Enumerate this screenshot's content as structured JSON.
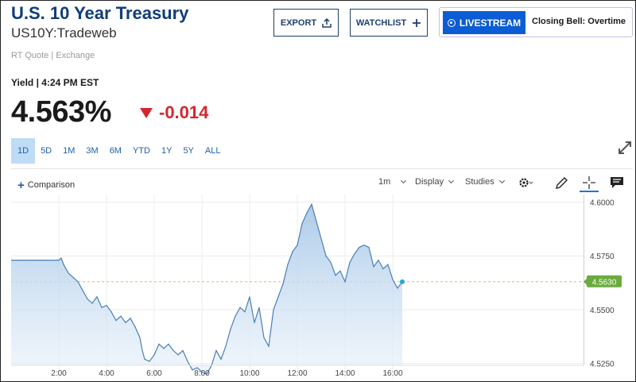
{
  "header": {
    "title": "U.S. 10 Year Treasury",
    "subtitle": "US10Y:Tradeweb",
    "quote_source": "RT Quote | Exchange"
  },
  "actions": {
    "export_label": "EXPORT",
    "watchlist_label": "WATCHLIST",
    "livestream_label": "LIVESTREAM",
    "closing_bell": "Closing Bell: Overtime"
  },
  "quote": {
    "yield_label": "Yield | 4:24 PM EST",
    "price": "4.563%",
    "change": "-0.014",
    "change_direction": "down",
    "change_color": "#d3272c"
  },
  "ranges": [
    "1D",
    "5D",
    "1M",
    "3M",
    "6M",
    "YTD",
    "1Y",
    "5Y",
    "ALL"
  ],
  "active_range": "1D",
  "toolbar": {
    "comparison": "Comparison",
    "interval": "1m",
    "display": "Display",
    "studies": "Studies"
  },
  "icons": [
    "export-icon",
    "plus-icon",
    "live-icon",
    "expand-icon",
    "gear-icon",
    "pencil-icon",
    "crosshair-icon",
    "comment-icon"
  ],
  "chart_data": {
    "type": "area",
    "x_ticks": [
      "2:00",
      "4:00",
      "6:00",
      "8:00",
      "10:00",
      "12:00",
      "14:00",
      "16:00"
    ],
    "y_ticks": [
      "4.6000",
      "4.5750",
      "4.5500",
      "4.5250"
    ],
    "ylim": [
      4.5175,
      4.6035
    ],
    "x_unit": "hours",
    "xlim": [
      0,
      24
    ],
    "last_value_label": "4.5630",
    "reference_line": 4.563,
    "grid": true,
    "series": [
      {
        "x": [
          0,
          0.5,
          1,
          1.5,
          2,
          2.1,
          2.2,
          2.4,
          2.6,
          2.8,
          3.0,
          3.2,
          3.4,
          3.6,
          3.8,
          4.0,
          4.2,
          4.4,
          4.6,
          4.8,
          5.0,
          5.2,
          5.4,
          5.5,
          5.6,
          5.8,
          6.0,
          6.2,
          6.4,
          6.6,
          6.8,
          7.0,
          7.2,
          7.4,
          7.6,
          7.8,
          8.0,
          8.2,
          8.4,
          8.6,
          8.8,
          9.0,
          9.2,
          9.4,
          9.6,
          9.8,
          10.0,
          10.2,
          10.4,
          10.6,
          10.8,
          11.0,
          11.2,
          11.4,
          11.6,
          11.8,
          12.0,
          12.2,
          12.4,
          12.6,
          12.8,
          13.0,
          13.2,
          13.4,
          13.6,
          13.8,
          14.0,
          14.2,
          14.4,
          14.6,
          14.8,
          15.0,
          15.2,
          15.4,
          15.6,
          15.8,
          16.0,
          16.2,
          16.4
        ],
        "y": [
          4.573,
          4.573,
          4.573,
          4.573,
          4.573,
          4.574,
          4.571,
          4.567,
          4.565,
          4.563,
          4.559,
          4.555,
          4.553,
          4.556,
          4.551,
          4.552,
          4.549,
          4.545,
          4.547,
          4.544,
          4.546,
          4.542,
          4.537,
          4.531,
          4.527,
          4.526,
          4.529,
          4.534,
          4.532,
          4.534,
          4.531,
          4.529,
          4.531,
          4.526,
          4.522,
          4.523,
          4.521,
          4.52,
          4.524,
          4.531,
          4.527,
          4.533,
          4.541,
          4.547,
          4.551,
          4.549,
          4.556,
          4.544,
          4.551,
          4.537,
          4.533,
          4.55,
          4.556,
          4.562,
          4.571,
          4.577,
          4.58,
          4.59,
          4.595,
          4.599,
          4.591,
          4.583,
          4.575,
          4.572,
          4.566,
          4.568,
          4.563,
          4.572,
          4.576,
          4.579,
          4.58,
          4.579,
          4.57,
          4.573,
          4.569,
          4.571,
          4.564,
          4.56,
          4.563
        ]
      }
    ]
  }
}
